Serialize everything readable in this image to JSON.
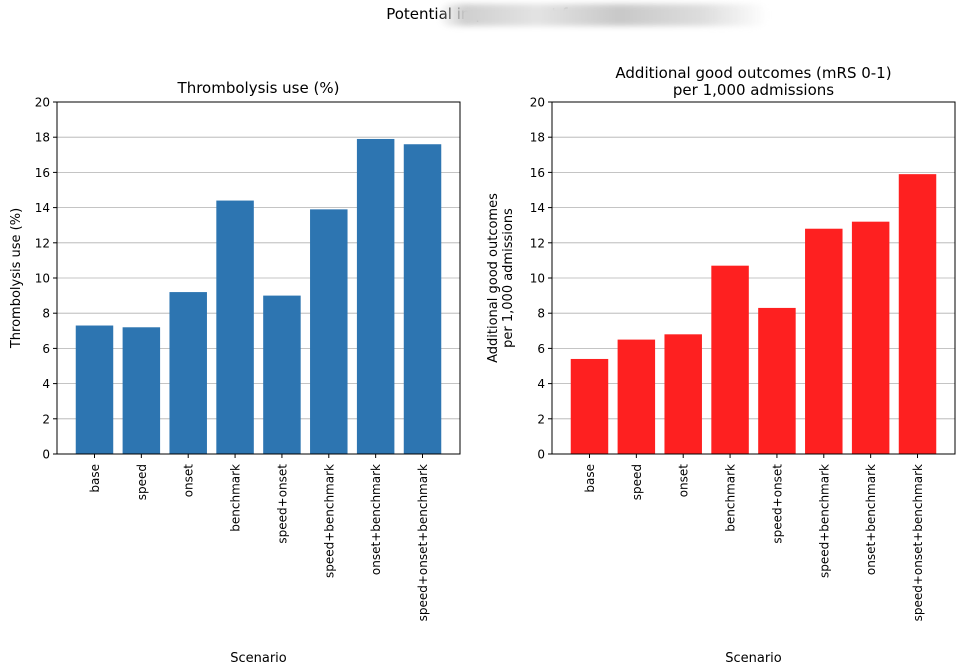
{
  "figure": {
    "suptitle": "Potential improvement for"
  },
  "chart_data": [
    {
      "type": "bar",
      "title": "Thrombolysis use (%)",
      "xlabel": "Scenario",
      "ylabel": "Thrombolysis use (%)",
      "categories": [
        "base",
        "speed",
        "onset",
        "benchmark",
        "speed+onset",
        "speed+benchmark",
        "onset+benchmark",
        "speed+onset+benchmark"
      ],
      "values": [
        7.3,
        7.2,
        9.2,
        14.4,
        9.0,
        13.9,
        17.9,
        17.6
      ],
      "ylim": [
        0,
        20
      ],
      "yticks": [
        0,
        2,
        4,
        6,
        8,
        10,
        12,
        14,
        16,
        18,
        20
      ],
      "grid": "y",
      "color": "#2d75b1"
    },
    {
      "type": "bar",
      "title": [
        "Additional good outcomes (mRS 0-1)",
        "per 1,000 admissions"
      ],
      "xlabel": "Scenario",
      "ylabel": [
        "Additional good outcomes",
        "per 1,000 admissions"
      ],
      "categories": [
        "base",
        "speed",
        "onset",
        "benchmark",
        "speed+onset",
        "speed+benchmark",
        "onset+benchmark",
        "speed+onset+benchmark"
      ],
      "values": [
        5.4,
        6.5,
        6.8,
        10.7,
        8.3,
        12.8,
        13.2,
        15.9
      ],
      "ylim": [
        0,
        20
      ],
      "yticks": [
        0,
        2,
        4,
        6,
        8,
        10,
        12,
        14,
        16,
        18,
        20
      ],
      "grid": "y",
      "color": "#fe2020"
    }
  ]
}
